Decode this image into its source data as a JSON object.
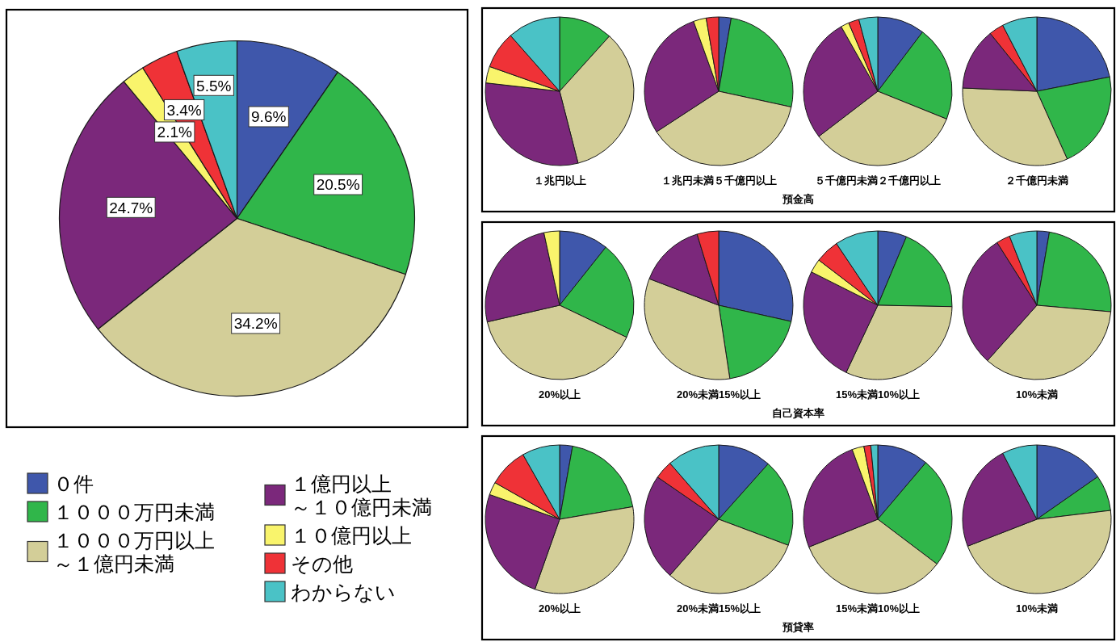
{
  "chart_data": [
    {
      "type": "pie",
      "categories": [
        "０件",
        "１０００万円未満",
        "１０００万円以上～１億円未満",
        "１億円以上～１０億円未満",
        "１０億円以上",
        "その他",
        "わからない"
      ],
      "values": [
        9.6,
        20.5,
        34.2,
        24.7,
        2.1,
        3.4,
        5.5
      ],
      "value_labels": [
        "9.6%",
        "20.5%",
        "34.2%",
        "24.7%",
        "2.1%",
        "3.4%",
        "5.5%"
      ],
      "colors": [
        "#3f57ab",
        "#30b64a",
        "#d3ce98",
        "#7b287b",
        "#f9f46c",
        "#ef3237",
        "#4ac2c6"
      ],
      "legend": "bottom"
    },
    {
      "type": "pie",
      "xlabel": "預金高",
      "colors": [
        "#3f57ab",
        "#30b64a",
        "#d3ce98",
        "#7b287b",
        "#f9f46c",
        "#ef3237",
        "#4ac2c6"
      ],
      "series": [
        {
          "name": "１兆円以上",
          "values": [
            0,
            11.7,
            34.3,
            30.8,
            3.6,
            8.1,
            11.5
          ]
        },
        {
          "name": "１兆円未満５千億円以上",
          "values": [
            2.7,
            25.7,
            37.4,
            28.7,
            2.8,
            2.7,
            0
          ]
        },
        {
          "name": "５千億円未満２千億円以上",
          "values": [
            10.3,
            20.8,
            33.5,
            27.2,
            1.8,
            2.3,
            4.1
          ]
        },
        {
          "name": "２千億円未満",
          "values": [
            21.9,
            21.4,
            32.4,
            13.5,
            0,
            3.2,
            7.6
          ]
        }
      ]
    },
    {
      "type": "pie",
      "xlabel": "自己資本率",
      "colors": [
        "#3f57ab",
        "#30b64a",
        "#d3ce98",
        "#7b287b",
        "#f9f46c",
        "#ef3237",
        "#4ac2c6"
      ],
      "series": [
        {
          "name": "20%以上",
          "values": [
            10.7,
            21.4,
            39.3,
            25.2,
            3.4,
            0,
            0
          ]
        },
        {
          "name": "20%未満15%以上",
          "values": [
            28.5,
            19.1,
            33.2,
            14.5,
            0,
            4.7,
            0
          ]
        },
        {
          "name": "15%未満10%以上",
          "values": [
            6.3,
            19.0,
            31.7,
            25.4,
            3.0,
            5.2,
            9.4
          ]
        },
        {
          "name": "10%未満",
          "values": [
            2.7,
            23.7,
            35.2,
            29.4,
            0,
            3.0,
            6.0
          ]
        }
      ]
    },
    {
      "type": "pie",
      "xlabel": "預貸率",
      "colors": [
        "#3f57ab",
        "#30b64a",
        "#d3ce98",
        "#7b287b",
        "#f9f46c",
        "#ef3237",
        "#4ac2c6"
      ],
      "series": [
        {
          "name": "20%以上",
          "values": [
            2.8,
            19.5,
            33.1,
            25.0,
            2.8,
            8.6,
            8.2
          ]
        },
        {
          "name": "20%未満15%以上",
          "values": [
            11.6,
            19.1,
            30.7,
            23.2,
            0,
            4.0,
            11.4
          ]
        },
        {
          "name": "15%未満10%以上",
          "values": [
            11.2,
            24.1,
            33.6,
            25.5,
            2.6,
            1.5,
            1.5
          ]
        },
        {
          "name": "10%未満",
          "values": [
            15.3,
            7.8,
            46.0,
            23.3,
            0,
            0,
            7.6
          ]
        }
      ]
    }
  ]
}
